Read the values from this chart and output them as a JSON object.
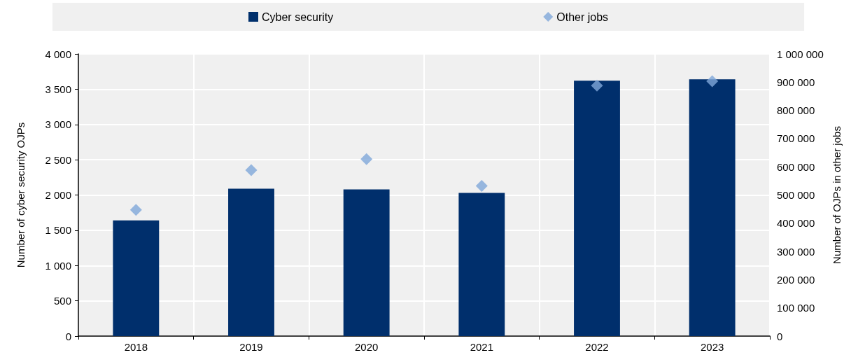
{
  "chart_data": {
    "type": "bar",
    "categories": [
      "2018",
      "2019",
      "2020",
      "2021",
      "2022",
      "2023"
    ],
    "series": [
      {
        "name": "Cyber security",
        "color": "#002f6c",
        "values": [
          1640,
          2090,
          2080,
          2030,
          3620,
          3640
        ]
      },
      {
        "name": "Other jobs",
        "type": "scatter",
        "axis": "y2",
        "color": "#7fa8d9",
        "marker": "diamond",
        "values": [
          447000,
          588000,
          627000,
          532000,
          888000,
          903000
        ]
      }
    ],
    "ylabel": "Number of cyber security OJPs",
    "y2label": "Number of OJPs in other jobs",
    "ylim": [
      0,
      4000
    ],
    "yticks": [
      0,
      500,
      {
        "value": 1000,
        "label": "1 000"
      },
      {
        "value": 1500,
        "label": "1 500"
      },
      {
        "value": 2000,
        "label": "2 000"
      },
      {
        "value": 2500,
        "label": "2 500"
      },
      {
        "value": 3000,
        "label": "3 000"
      },
      {
        "value": 3500,
        "label": "3 500"
      },
      {
        "value": 4000,
        "label": "4 000"
      }
    ],
    "y2lim": [
      0,
      1000000
    ],
    "y2ticks": [
      0,
      {
        "value": 100000,
        "label": "100 000"
      },
      {
        "value": 200000,
        "label": "200 000"
      },
      {
        "value": 300000,
        "label": "300 000"
      },
      {
        "value": 400000,
        "label": "400 000"
      },
      {
        "value": 500000,
        "label": "500 000"
      },
      {
        "value": 600000,
        "label": "600 000"
      },
      {
        "value": 700000,
        "label": "700 000"
      },
      {
        "value": 800000,
        "label": "800 000"
      },
      {
        "value": 900000,
        "label": "900 000"
      },
      {
        "value": 1000000,
        "label": "1 000 000"
      }
    ],
    "grid": true,
    "legend": "top"
  }
}
